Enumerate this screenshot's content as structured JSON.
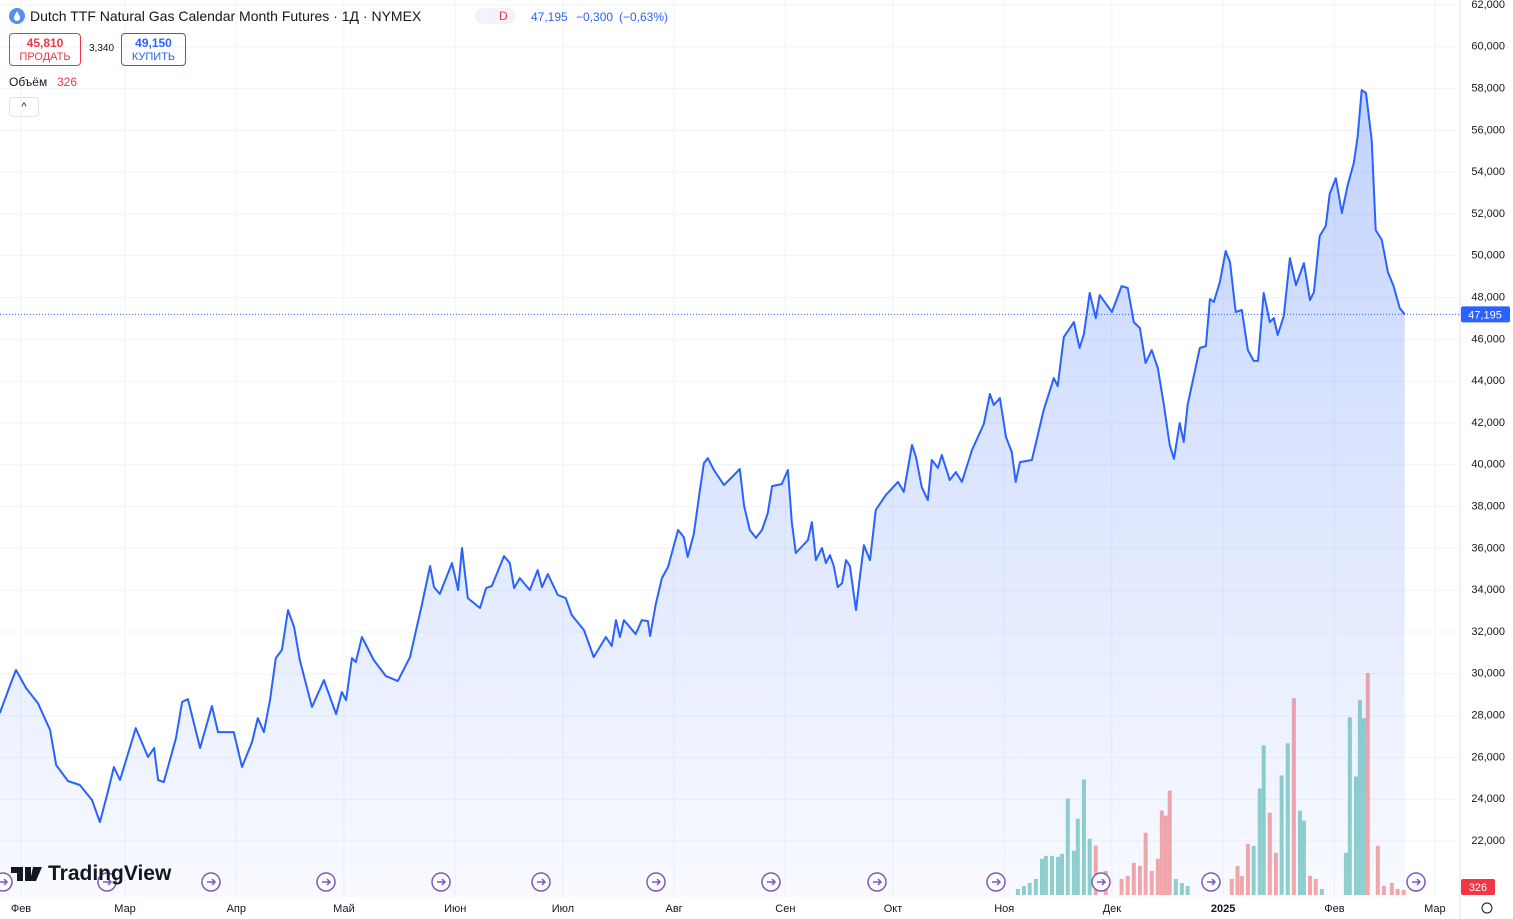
{
  "header": {
    "title": "Dutch TTF Natural Gas Calendar Month Futures · 1Д · NYMEX",
    "interval_badge": "D",
    "price": "47,195",
    "change": "−0,300",
    "change_pct": "(−0,63%)",
    "sell_price": "45,810",
    "sell_label": "ПРОДАТЬ",
    "spread": "3,340",
    "buy_price": "49,150",
    "buy_label": "КУПИТЬ",
    "volume_label": "Объём",
    "brand": "TradingView"
  },
  "chart_data": {
    "type": "line",
    "grid": true,
    "xlim": [
      -5.85,
      401.0
    ],
    "ylim": [
      19.32,
      62.24
    ],
    "xticks": [
      {
        "value": 0,
        "label": "Фев"
      },
      {
        "value": 29,
        "label": "Мар"
      },
      {
        "value": 60,
        "label": "Апр"
      },
      {
        "value": 90,
        "label": "Май"
      },
      {
        "value": 121,
        "label": "Июн"
      },
      {
        "value": 151,
        "label": "Июл"
      },
      {
        "value": 182,
        "label": "Авг"
      },
      {
        "value": 213,
        "label": "Сен"
      },
      {
        "value": 243,
        "label": "Окт"
      },
      {
        "value": 274,
        "label": "Ноя"
      },
      {
        "value": 304,
        "label": "Дек"
      },
      {
        "value": 335,
        "label": "2025"
      },
      {
        "value": 366,
        "label": "Фев"
      },
      {
        "value": 394,
        "label": "Мар"
      }
    ],
    "yticks": [
      {
        "value": 22,
        "label": "22,000"
      },
      {
        "value": 24,
        "label": "24,000"
      },
      {
        "value": 26,
        "label": "26,000"
      },
      {
        "value": 28,
        "label": "28,000"
      },
      {
        "value": 30,
        "label": "30,000"
      },
      {
        "value": 32,
        "label": "32,000"
      },
      {
        "value": 34,
        "label": "34,000"
      },
      {
        "value": 36,
        "label": "36,000"
      },
      {
        "value": 38,
        "label": "38,000"
      },
      {
        "value": 40,
        "label": "40,000"
      },
      {
        "value": 42,
        "label": "42,000"
      },
      {
        "value": 44,
        "label": "44,000"
      },
      {
        "value": 46,
        "label": "46,000"
      },
      {
        "value": 48,
        "label": "48,000"
      },
      {
        "value": 50,
        "label": "50,000"
      },
      {
        "value": 52,
        "label": "52,000"
      },
      {
        "value": 54,
        "label": "54,000"
      },
      {
        "value": 56,
        "label": "56,000"
      },
      {
        "value": 58,
        "label": "58,000"
      },
      {
        "value": 60,
        "label": "60,000"
      },
      {
        "value": 62,
        "label": "62,000"
      }
    ],
    "last_price": {
      "value": 47.195,
      "label": "47,195"
    },
    "series": [
      {
        "color": "#2962ff",
        "x": [
          -5.9,
          -2.5,
          -1.4,
          1.4,
          4.7,
          8.1,
          9.8,
          13.1,
          16.4,
          19.8,
          22.0,
          24.2,
          25.9,
          27.6,
          32.0,
          35.4,
          37.1,
          38.2,
          39.8,
          43.2,
          44.9,
          46.5,
          49.9,
          53.2,
          54.9,
          59.3,
          61.6,
          64.4,
          66.0,
          67.7,
          69.4,
          71.0,
          72.7,
          74.4,
          76.1,
          77.7,
          81.1,
          84.4,
          87.8,
          89.4,
          90.6,
          92.2,
          93.3,
          95.0,
          98.3,
          101.7,
          105.0,
          108.4,
          111.7,
          114.0,
          115.1,
          116.7,
          120.1,
          121.8,
          122.9,
          124.5,
          127.9,
          129.6,
          131.2,
          134.6,
          136.2,
          137.4,
          139.0,
          141.8,
          144.0,
          145.2,
          146.8,
          149.6,
          151.8,
          153.5,
          156.9,
          159.6,
          163.0,
          164.6,
          165.8,
          166.9,
          168.0,
          171.3,
          173.0,
          174.7,
          175.3,
          176.9,
          178.6,
          180.3,
          183.1,
          184.7,
          185.8,
          187.5,
          189.2,
          190.3,
          191.4,
          193.1,
          195.9,
          198.7,
          200.3,
          201.5,
          203.1,
          204.8,
          206.5,
          208.1,
          209.3,
          212.0,
          213.7,
          214.8,
          215.9,
          219.3,
          220.4,
          221.5,
          223.2,
          224.3,
          225.4,
          226.5,
          227.6,
          228.8,
          229.9,
          231.0,
          232.7,
          233.8,
          234.9,
          236.6,
          238.2,
          241.0,
          244.4,
          246.0,
          248.3,
          249.4,
          251.0,
          252.7,
          253.8,
          255.5,
          256.6,
          258.8,
          260.5,
          262.2,
          265.0,
          268.3,
          270.0,
          271.1,
          272.8,
          274.5,
          276.1,
          277.2,
          278.4,
          281.7,
          285.0,
          287.8,
          288.9,
          290.6,
          293.4,
          295.0,
          296.2,
          297.8,
          299.5,
          300.6,
          304.0,
          306.7,
          308.4,
          310.1,
          311.8,
          313.4,
          315.1,
          316.8,
          318.5,
          320.1,
          321.3,
          322.9,
          324.0,
          325.1,
          328.5,
          330.2,
          331.3,
          332.4,
          334.1,
          335.7,
          336.9,
          338.5,
          340.2,
          341.9,
          343.5,
          344.7,
          346.3,
          348.0,
          349.1,
          350.2,
          351.9,
          353.6,
          355.3,
          357.5,
          359.2,
          360.3,
          361.9,
          363.6,
          364.7,
          366.4,
          368.1,
          369.7,
          371.4,
          372.5,
          373.6,
          374.8,
          376.4,
          377.5,
          379.2,
          380.9,
          382.5,
          384.2,
          385.6
        ],
        "values": [
          28.12,
          29.7,
          30.18,
          29.32,
          28.6,
          27.31,
          25.63,
          24.87,
          24.68,
          23.96,
          22.91,
          24.34,
          25.54,
          24.92,
          27.4,
          26.02,
          26.45,
          24.92,
          24.82,
          26.93,
          28.65,
          28.79,
          26.45,
          28.46,
          27.21,
          27.21,
          25.54,
          26.74,
          27.88,
          27.21,
          28.74,
          30.75,
          31.14,
          33.05,
          32.24,
          30.66,
          28.41,
          29.7,
          28.07,
          29.13,
          28.74,
          30.75,
          30.56,
          31.76,
          30.66,
          29.89,
          29.65,
          30.8,
          33.29,
          35.16,
          34.15,
          33.82,
          35.3,
          34.01,
          36.02,
          33.62,
          33.15,
          34.1,
          34.2,
          35.63,
          35.3,
          34.1,
          34.58,
          34.01,
          34.96,
          34.15,
          34.77,
          33.77,
          33.62,
          32.81,
          32.09,
          30.8,
          31.76,
          31.33,
          32.57,
          31.76,
          32.57,
          31.9,
          32.57,
          32.52,
          31.81,
          33.34,
          34.58,
          35.11,
          36.88,
          36.54,
          35.59,
          36.69,
          38.79,
          40.08,
          40.32,
          39.75,
          39.03,
          39.51,
          39.8,
          38.03,
          36.88,
          36.5,
          36.88,
          37.69,
          38.98,
          39.08,
          39.75,
          37.26,
          35.78,
          36.4,
          37.26,
          35.44,
          36.02,
          35.3,
          35.68,
          35.16,
          34.15,
          34.34,
          35.44,
          35.16,
          33.05,
          34.68,
          36.16,
          35.44,
          37.84,
          38.55,
          39.18,
          38.7,
          40.95,
          40.37,
          38.94,
          38.31,
          40.23,
          39.85,
          40.47,
          39.27,
          39.65,
          39.18,
          40.71,
          41.95,
          43.39,
          42.86,
          43.19,
          41.33,
          40.61,
          39.18,
          40.13,
          40.23,
          42.62,
          44.15,
          43.77,
          46.11,
          46.83,
          45.59,
          46.26,
          48.22,
          47.02,
          48.12,
          47.31,
          48.55,
          48.46,
          46.83,
          46.54,
          44.87,
          45.49,
          44.63,
          42.86,
          40.95,
          40.28,
          42.0,
          41.09,
          42.86,
          45.59,
          45.68,
          47.93,
          47.79,
          48.75,
          50.23,
          49.7,
          47.31,
          47.41,
          45.49,
          44.97,
          44.97,
          48.22,
          46.83,
          47.02,
          46.21,
          47.12,
          49.89,
          48.6,
          49.65,
          47.88,
          48.27,
          50.95,
          51.43,
          52.96,
          53.72,
          52.05,
          53.39,
          54.44,
          55.73,
          57.93,
          57.79,
          55.54,
          51.23,
          50.76,
          49.22,
          48.55,
          47.5,
          47.195
        ]
      }
    ],
    "volume_series": [
      {
        "color": "#92d2cc",
        "x": [
          277.8,
          279.5,
          281.1,
          282.8,
          284.5,
          285.6,
          287.3,
          289.0,
          290.1,
          291.7,
          293.4,
          294.5,
          296.2,
          297.8,
          321.8,
          323.5,
          325.1,
          343.5,
          345.2,
          346.3,
          351.3,
          353.0,
          356.4,
          357.5,
          362.5,
          369.2,
          370.3,
          372.0,
          373.1,
          374.2
        ],
        "values": [
          390,
          585,
          780,
          1040,
          2340,
          2535,
          2535,
          2470,
          2665,
          6240,
          2860,
          4940,
          7475,
          3640,
          1040,
          780,
          585,
          3185,
          6890,
          9685,
          7735,
          9815,
          5460,
          4810,
          390,
          2730,
          11505,
          7670,
          12610,
          11440
        ]
      },
      {
        "color": "#f7a9a7",
        "x": [
          299.5,
          302.3,
          306.7,
          308.4,
          310.1,
          311.8,
          313.4,
          315.1,
          316.8,
          317.9,
          319.0,
          320.1,
          337.4,
          339.0,
          340.2,
          341.9,
          348.0,
          349.7,
          354.7,
          359.2,
          360.8,
          375.3,
          378.1,
          379.8,
          382.0,
          383.6,
          385.3
        ],
        "values": [
          3185,
          1560,
          1040,
          1235,
          2080,
          1885,
          4030,
          1560,
          2340,
          5460,
          5135,
          6760,
          1040,
          1885,
          1235,
          3315,
          5330,
          2730,
          12740,
          1235,
          1040,
          14365,
          3185,
          585,
          780,
          390,
          326
        ]
      }
    ]
  }
}
